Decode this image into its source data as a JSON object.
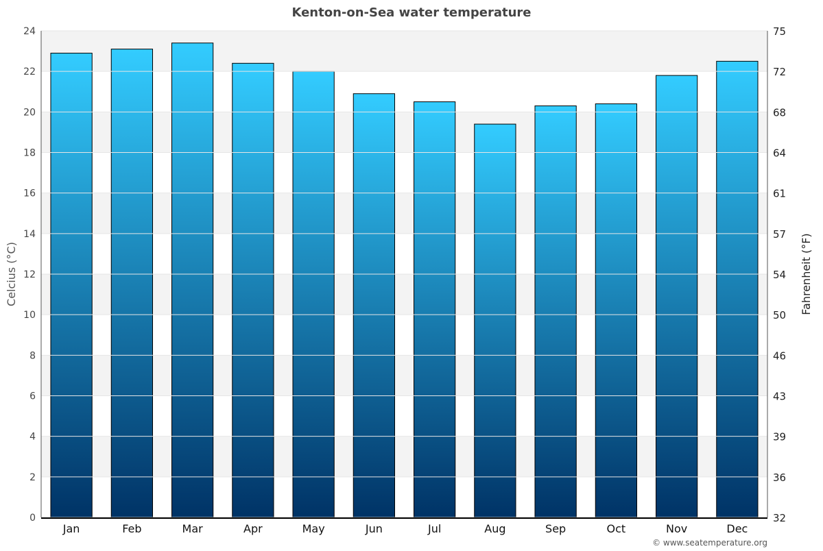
{
  "chart_data": {
    "type": "bar",
    "title": "Kenton-on-Sea water temperature",
    "ylabel": "Celcius (°C)",
    "ylabel_right": "Fahrenheit (°F)",
    "categories": [
      "Jan",
      "Feb",
      "Mar",
      "Apr",
      "May",
      "Jun",
      "Jul",
      "Aug",
      "Sep",
      "Oct",
      "Nov",
      "Dec"
    ],
    "values": [
      22.9,
      23.1,
      23.4,
      22.4,
      22.0,
      20.9,
      20.5,
      19.4,
      20.3,
      20.4,
      21.8,
      22.5
    ],
    "ylim": [
      0,
      24
    ],
    "yticks": [
      0,
      2,
      4,
      6,
      8,
      10,
      12,
      14,
      16,
      18,
      20,
      22,
      24
    ],
    "yticks_right": [
      32,
      36,
      39,
      43,
      46,
      50,
      54,
      57,
      61,
      64,
      68,
      72,
      75
    ],
    "grid": true,
    "colors": {
      "bar_top": "#33ccff",
      "bar_bottom": "#003366",
      "band": "#f3f3f3"
    }
  },
  "footer": "© www.seatemperature.org"
}
